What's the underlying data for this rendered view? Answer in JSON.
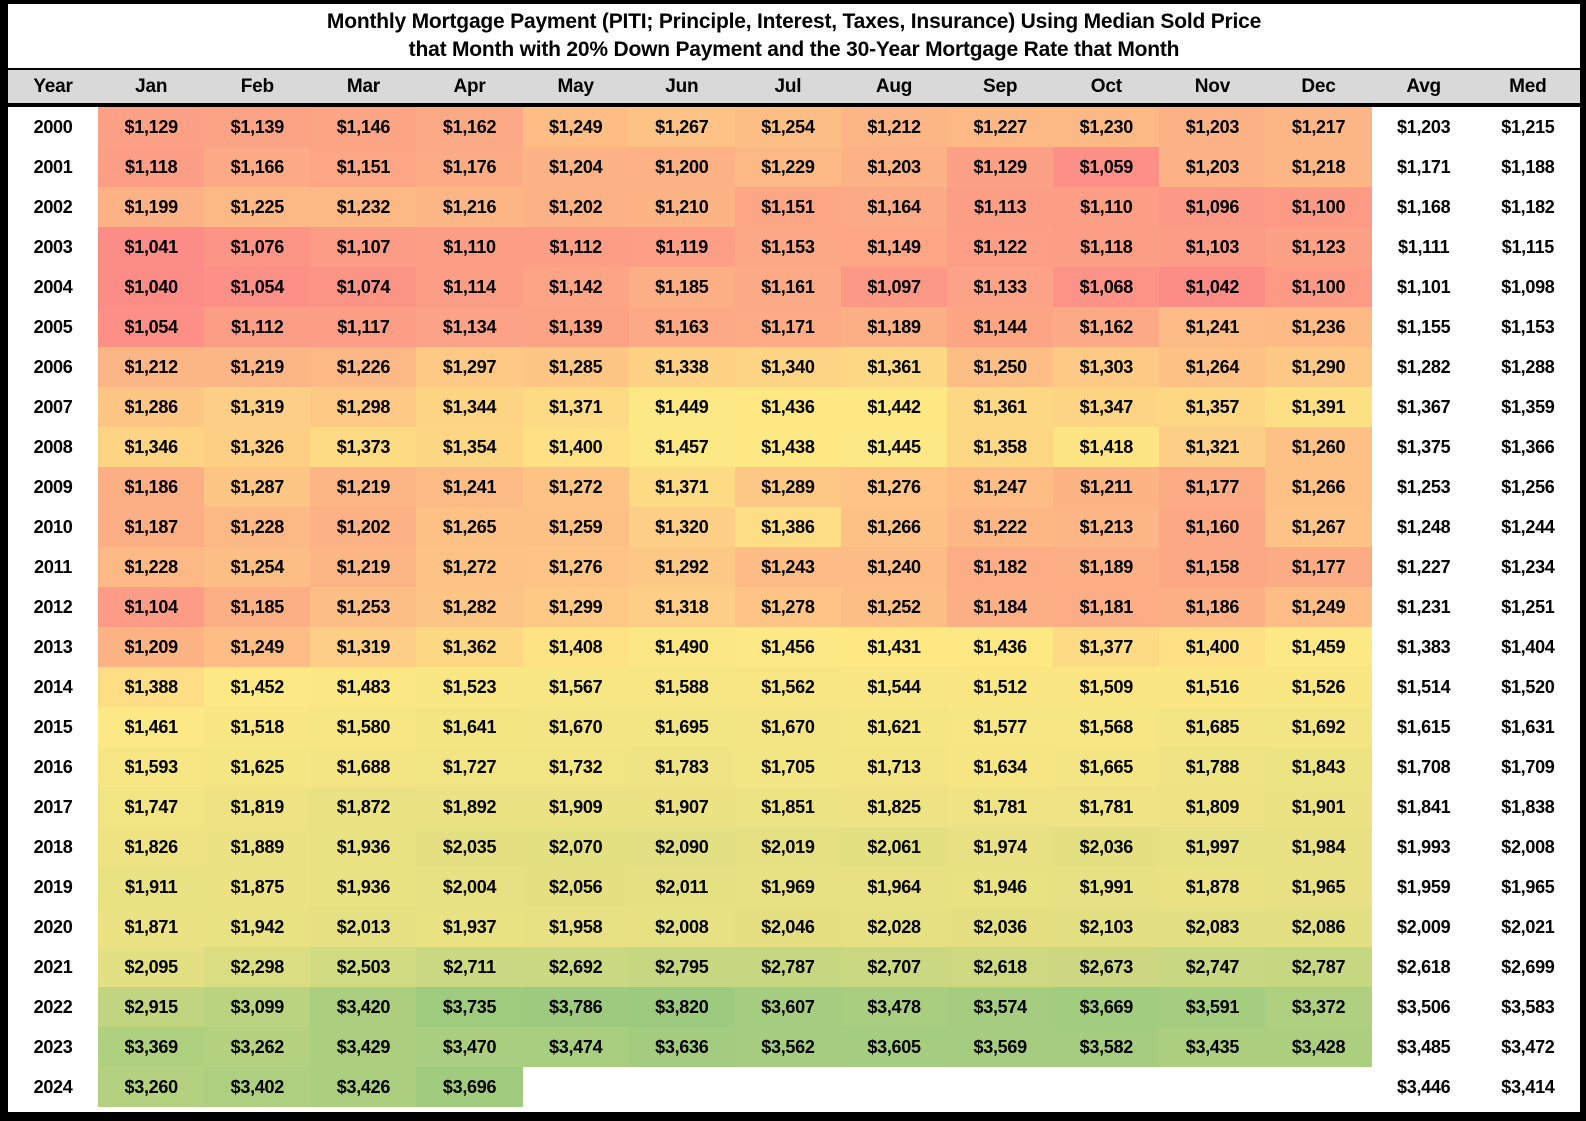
{
  "chart_data": {
    "type": "heatmap",
    "title_line1": "Monthly Mortgage Payment (PITI; Principle, Interest, Taxes, Insurance) Using Median Sold Price",
    "title_line2": "that Month with 20% Down Payment and the 30-Year Mortgage Rate that Month",
    "value_format": "USD_monthly_payment",
    "columns": [
      "Year",
      "Jan",
      "Feb",
      "Mar",
      "Apr",
      "May",
      "Jun",
      "Jul",
      "Aug",
      "Sep",
      "Oct",
      "Nov",
      "Dec",
      "Avg",
      "Med"
    ],
    "legend_position": "none",
    "grid": false,
    "color_scale": {
      "min_value": 1040,
      "min_color": "#FC8C86",
      "mid_value": 1430,
      "mid_color": "#FDE884",
      "max_value": 3820,
      "max_color": "#9CCA7E",
      "header_bg": "#D9D9D9",
      "border_color": "#000000",
      "text_color": "#000000",
      "blank_bg": "#FFFFFF"
    },
    "rows": [
      {
        "year": "2000",
        "months": [
          1129,
          1139,
          1146,
          1162,
          1249,
          1267,
          1254,
          1212,
          1227,
          1230,
          1203,
          1217
        ],
        "avg": 1203,
        "med": 1215
      },
      {
        "year": "2001",
        "months": [
          1118,
          1166,
          1151,
          1176,
          1204,
          1200,
          1229,
          1203,
          1129,
          1059,
          1203,
          1218
        ],
        "avg": 1171,
        "med": 1188
      },
      {
        "year": "2002",
        "months": [
          1199,
          1225,
          1232,
          1216,
          1202,
          1210,
          1151,
          1164,
          1113,
          1110,
          1096,
          1100
        ],
        "avg": 1168,
        "med": 1182
      },
      {
        "year": "2003",
        "months": [
          1041,
          1076,
          1107,
          1110,
          1112,
          1119,
          1153,
          1149,
          1122,
          1118,
          1103,
          1123
        ],
        "avg": 1111,
        "med": 1115
      },
      {
        "year": "2004",
        "months": [
          1040,
          1054,
          1074,
          1114,
          1142,
          1185,
          1161,
          1097,
          1133,
          1068,
          1042,
          1100
        ],
        "avg": 1101,
        "med": 1098
      },
      {
        "year": "2005",
        "months": [
          1054,
          1112,
          1117,
          1134,
          1139,
          1163,
          1171,
          1189,
          1144,
          1162,
          1241,
          1236
        ],
        "avg": 1155,
        "med": 1153
      },
      {
        "year": "2006",
        "months": [
          1212,
          1219,
          1226,
          1297,
          1285,
          1338,
          1340,
          1361,
          1250,
          1303,
          1264,
          1290
        ],
        "avg": 1282,
        "med": 1288
      },
      {
        "year": "2007",
        "months": [
          1286,
          1319,
          1298,
          1344,
          1371,
          1449,
          1436,
          1442,
          1361,
          1347,
          1357,
          1391
        ],
        "avg": 1367,
        "med": 1359
      },
      {
        "year": "2008",
        "months": [
          1346,
          1326,
          1373,
          1354,
          1400,
          1457,
          1438,
          1445,
          1358,
          1418,
          1321,
          1260
        ],
        "avg": 1375,
        "med": 1366
      },
      {
        "year": "2009",
        "months": [
          1186,
          1287,
          1219,
          1241,
          1272,
          1371,
          1289,
          1276,
          1247,
          1211,
          1177,
          1266
        ],
        "avg": 1253,
        "med": 1256
      },
      {
        "year": "2010",
        "months": [
          1187,
          1228,
          1202,
          1265,
          1259,
          1320,
          1386,
          1266,
          1222,
          1213,
          1160,
          1267
        ],
        "avg": 1248,
        "med": 1244
      },
      {
        "year": "2011",
        "months": [
          1228,
          1254,
          1219,
          1272,
          1276,
          1292,
          1243,
          1240,
          1182,
          1189,
          1158,
          1177
        ],
        "avg": 1227,
        "med": 1234
      },
      {
        "year": "2012",
        "months": [
          1104,
          1185,
          1253,
          1282,
          1299,
          1318,
          1278,
          1252,
          1184,
          1181,
          1186,
          1249
        ],
        "avg": 1231,
        "med": 1251
      },
      {
        "year": "2013",
        "months": [
          1209,
          1249,
          1319,
          1362,
          1408,
          1490,
          1456,
          1431,
          1436,
          1377,
          1400,
          1459
        ],
        "avg": 1383,
        "med": 1404
      },
      {
        "year": "2014",
        "months": [
          1388,
          1452,
          1483,
          1523,
          1567,
          1588,
          1562,
          1544,
          1512,
          1509,
          1516,
          1526
        ],
        "avg": 1514,
        "med": 1520
      },
      {
        "year": "2015",
        "months": [
          1461,
          1518,
          1580,
          1641,
          1670,
          1695,
          1670,
          1621,
          1577,
          1568,
          1685,
          1692
        ],
        "avg": 1615,
        "med": 1631
      },
      {
        "year": "2016",
        "months": [
          1593,
          1625,
          1688,
          1727,
          1732,
          1783,
          1705,
          1713,
          1634,
          1665,
          1788,
          1843
        ],
        "avg": 1708,
        "med": 1709
      },
      {
        "year": "2017",
        "months": [
          1747,
          1819,
          1872,
          1892,
          1909,
          1907,
          1851,
          1825,
          1781,
          1781,
          1809,
          1901
        ],
        "avg": 1841,
        "med": 1838
      },
      {
        "year": "2018",
        "months": [
          1826,
          1889,
          1936,
          2035,
          2070,
          2090,
          2019,
          2061,
          1974,
          2036,
          1997,
          1984
        ],
        "avg": 1993,
        "med": 2008
      },
      {
        "year": "2019",
        "months": [
          1911,
          1875,
          1936,
          2004,
          2056,
          2011,
          1969,
          1964,
          1946,
          1991,
          1878,
          1965
        ],
        "avg": 1959,
        "med": 1965
      },
      {
        "year": "2020",
        "months": [
          1871,
          1942,
          2013,
          1937,
          1958,
          2008,
          2046,
          2028,
          2036,
          2103,
          2083,
          2086
        ],
        "avg": 2009,
        "med": 2021
      },
      {
        "year": "2021",
        "months": [
          2095,
          2298,
          2503,
          2711,
          2692,
          2795,
          2787,
          2707,
          2618,
          2673,
          2747,
          2787
        ],
        "avg": 2618,
        "med": 2699
      },
      {
        "year": "2022",
        "months": [
          2915,
          3099,
          3420,
          3735,
          3786,
          3820,
          3607,
          3478,
          3574,
          3669,
          3591,
          3372
        ],
        "avg": 3506,
        "med": 3583
      },
      {
        "year": "2023",
        "months": [
          3369,
          3262,
          3429,
          3470,
          3474,
          3636,
          3562,
          3605,
          3569,
          3582,
          3435,
          3428
        ],
        "avg": 3485,
        "med": 3472
      },
      {
        "year": "2024",
        "months": [
          3260,
          3402,
          3426,
          3696,
          null,
          null,
          null,
          null,
          null,
          null,
          null,
          null
        ],
        "avg": 3446,
        "med": 3414
      }
    ]
  }
}
